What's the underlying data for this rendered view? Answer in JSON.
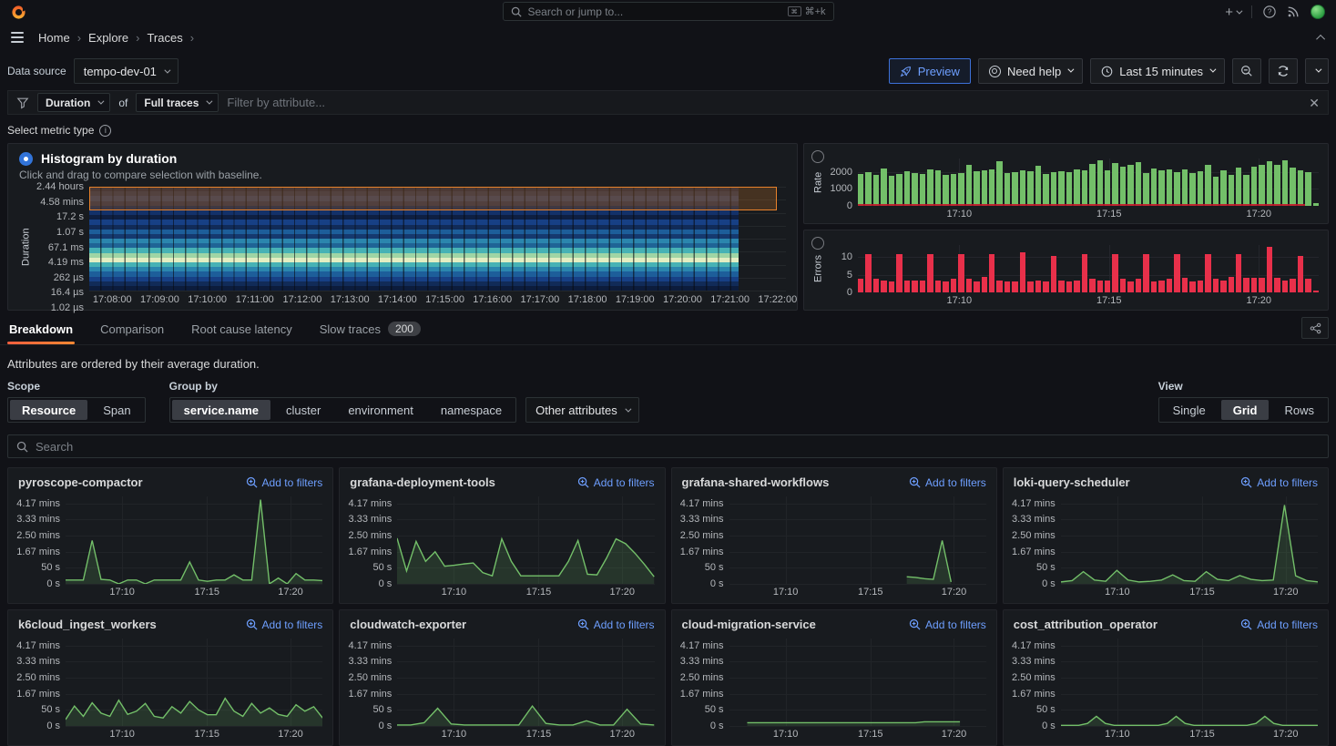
{
  "chrome": {
    "search_placeholder": "Search or jump to...",
    "shortcut": "⌘+k",
    "breadcrumbs": [
      "Home",
      "Explore",
      "Traces"
    ]
  },
  "icons": {
    "logo": "grafana-flame",
    "menu": "hamburger",
    "search": "magnifier",
    "add": "plus",
    "help": "question-circle",
    "news": "rss",
    "profile": "avatar",
    "filter": "funnel",
    "preview": "rocket",
    "need_help": "life-ring",
    "time": "clock",
    "zoom_out": "magnifier-minus",
    "refresh": "sync",
    "close": "x",
    "share": "share-nodes",
    "add_to_filters": "magnifier-plus"
  },
  "toolbar": {
    "datasource_label": "Data source",
    "datasource_value": "tempo-dev-01",
    "preview_label": "Preview",
    "need_help_label": "Need help",
    "time_range_label": "Last 15 minutes"
  },
  "filter": {
    "duration_label": "Duration",
    "of_label": "of",
    "traces_label": "Full traces",
    "attribute_placeholder": "Filter by attribute..."
  },
  "metric": {
    "select_label": "Select metric type",
    "histogram_title": "Histogram by duration",
    "histogram_hint": "Click and drag to compare selection with baseline."
  },
  "tabs": {
    "items": [
      "Breakdown",
      "Comparison",
      "Root cause latency",
      "Slow traces"
    ],
    "active": "Breakdown",
    "slow_traces_badge": "200"
  },
  "breakdown": {
    "note": "Attributes are ordered by their average duration.",
    "scope_label": "Scope",
    "scope_options": [
      "Resource",
      "Span"
    ],
    "scope_selected": "Resource",
    "groupby_label": "Group by",
    "groupby_options": [
      "service.name",
      "cluster",
      "environment",
      "namespace"
    ],
    "groupby_selected": "service.name",
    "other_attributes_label": "Other attributes",
    "view_label": "View",
    "view_options": [
      "Single",
      "Grid",
      "Rows"
    ],
    "view_selected": "Grid",
    "search_placeholder": "Search",
    "add_to_filters_label": "Add to filters"
  },
  "colors": {
    "accent_blue": "#3d71d9",
    "link_blue": "#6e9fff",
    "tab_orange": "#ff780a",
    "green": "#73bf69",
    "red": "#e8304a"
  },
  "chart_data": [
    {
      "id": "duration-histogram",
      "type": "heatmap",
      "title": "Histogram by duration",
      "ylabel": "Duration",
      "y_ticks": [
        "2.44 hours",
        "4.58 mins",
        "17.2 s",
        "1.07 s",
        "67.1 ms",
        "4.19 ms",
        "262 µs",
        "16.4 µs",
        "1.02 µs"
      ],
      "x_ticks": [
        "17:08:00",
        "17:09:00",
        "17:10:00",
        "17:11:00",
        "17:12:00",
        "17:13:00",
        "17:14:00",
        "17:15:00",
        "17:16:00",
        "17:17:00",
        "17:18:00",
        "17:19:00",
        "17:20:00",
        "17:21:00",
        "17:22:00"
      ],
      "selection": {
        "from": "4.58 mins",
        "to": "2.44 hours",
        "border": "#e8822b",
        "fill": "rgba(232,130,43,0.22)"
      },
      "rows": [
        "#20263a",
        "#2a3046",
        "#303a56",
        "#282e44",
        "#102349",
        "#133169",
        "#0e1f42",
        "#174085",
        "#112b58",
        "#1d5e9a",
        "#15396f",
        "#2b86ae",
        "#1f6496",
        "#47b2b5",
        "#9fd5a5",
        "#e3eec2",
        "#47b2b5",
        "#2b86ae",
        "#1d5e9a",
        "#174085",
        "#112b58",
        "#0c1c3c"
      ]
    },
    {
      "id": "rate",
      "type": "bar",
      "ylabel": "Rate",
      "color": "#73bf69",
      "baseline_color": "#c4162a",
      "ymax": 2800,
      "y_ticks": [
        0,
        1000,
        2000
      ],
      "x_ticks": [
        "17:10",
        "17:15",
        "17:20"
      ],
      "values": [
        1900,
        1980,
        1820,
        2230,
        1760,
        1900,
        2040,
        1960,
        1880,
        2160,
        2120,
        1850,
        1900,
        1960,
        2420,
        2060,
        2120,
        2160,
        2620,
        1950,
        2020,
        2120,
        2040,
        2360,
        1900,
        2010,
        2060,
        2000,
        2140,
        2120,
        2460,
        2700,
        2120,
        2520,
        2320,
        2440,
        2560,
        1950,
        2220,
        2120,
        2140,
        2000,
        2160,
        1950,
        2060,
        2420,
        1700,
        2120,
        1820,
        2260,
        1850,
        2320,
        2420,
        2620,
        2420,
        2700,
        2260,
        2120,
        1980,
        160
      ]
    },
    {
      "id": "errors",
      "type": "bar",
      "ylabel": "Errors",
      "color": "#e8304a",
      "ymax": 13.5,
      "y_ticks": [
        0,
        5,
        10
      ],
      "x_ticks": [
        "17:10",
        "17:15",
        "17:20"
      ],
      "values": [
        4,
        11,
        4,
        3.5,
        3,
        11,
        3.5,
        3.5,
        3.5,
        11,
        3.5,
        3,
        4,
        11,
        4,
        3,
        4.5,
        11,
        3.5,
        3,
        3,
        11.5,
        3,
        3.5,
        3,
        10.5,
        3.5,
        3,
        3.5,
        11,
        3.8,
        3.5,
        3.5,
        11,
        4,
        3,
        4,
        11,
        3,
        3.5,
        4,
        11,
        4.2,
        3.2,
        3.5,
        11,
        4,
        3.3,
        4.5,
        11,
        4.2,
        4.2,
        4.2,
        13,
        4.2,
        3.5,
        4,
        10.5,
        3.8,
        0.4
      ]
    },
    {
      "id": "service-breakdown",
      "type": "area",
      "stroke": "#73bf69",
      "fill": "rgba(115,191,105,0.16)",
      "ymax_seconds": 272,
      "y_tick_values": [
        250,
        200,
        150,
        100,
        50,
        0
      ],
      "y_tick_labels": [
        "4.17 mins",
        "3.33 mins",
        "2.50 mins",
        "1.67 mins",
        "50 s",
        "0 s"
      ],
      "x_ticks": [
        "17:10",
        "17:15",
        "17:20"
      ],
      "series": [
        {
          "name": "pyroscope-compactor",
          "values": [
            12,
            12,
            12,
            135,
            14,
            12,
            0,
            12,
            12,
            0,
            12,
            12,
            12,
            12,
            68,
            12,
            8,
            12,
            12,
            28,
            12,
            12,
            262,
            0,
            18,
            0,
            32,
            12,
            12,
            10
          ]
        },
        {
          "name": "grafana-deployment-tools",
          "values": [
            142,
            40,
            132,
            70,
            100,
            55,
            58,
            62,
            65,
            35,
            25,
            140,
            70,
            25,
            25,
            25,
            25,
            25,
            70,
            135,
            30,
            28,
            80,
            140,
            125,
            95,
            60,
            22
          ]
        },
        {
          "name": "grafana-shared-workflows",
          "values": [
            null,
            null,
            null,
            null,
            null,
            null,
            null,
            null,
            null,
            null,
            null,
            null,
            null,
            null,
            null,
            null,
            null,
            null,
            null,
            null,
            22,
            20,
            16,
            14,
            135,
            6,
            null,
            null,
            null,
            null
          ]
        },
        {
          "name": "loki-query-scheduler",
          "values": [
            6,
            10,
            38,
            12,
            8,
            42,
            12,
            6,
            8,
            12,
            28,
            10,
            8,
            38,
            14,
            10,
            26,
            14,
            10,
            12,
            245,
            25,
            10,
            6
          ]
        },
        {
          "name": "k6cloud_ingest_workers",
          "values": [
            20,
            62,
            30,
            72,
            40,
            30,
            80,
            36,
            46,
            70,
            30,
            25,
            60,
            40,
            76,
            50,
            35,
            35,
            86,
            46,
            30,
            70,
            40,
            56,
            36,
            30,
            66,
            46,
            60,
            25
          ]
        },
        {
          "name": "cloudwatch-exporter",
          "values": [
            3,
            3,
            10,
            55,
            6,
            3,
            3,
            3,
            3,
            3,
            62,
            8,
            3,
            3,
            16,
            3,
            3,
            52,
            6,
            3
          ]
        },
        {
          "name": "cloud-migration-service",
          "values": [
            null,
            null,
            10,
            10,
            10,
            10,
            10,
            10,
            10,
            10,
            10,
            10,
            10,
            10,
            10,
            10,
            10,
            10,
            10,
            10,
            10,
            10,
            13,
            13,
            13,
            13,
            13,
            null,
            null,
            null
          ]
        },
        {
          "name": "cost_attribution_operator",
          "values": [
            2,
            2,
            2,
            8,
            30,
            8,
            2,
            2,
            2,
            2,
            2,
            2,
            8,
            30,
            8,
            2,
            2,
            2,
            2,
            2,
            2,
            2,
            8,
            30,
            8,
            2,
            2,
            2,
            2,
            2
          ]
        }
      ]
    }
  ]
}
